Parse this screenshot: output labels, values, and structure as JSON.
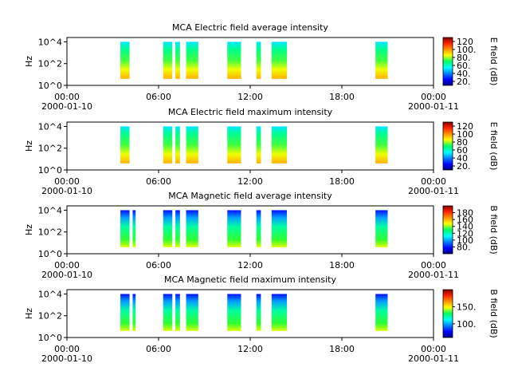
{
  "chart_data": [
    {
      "type": "spectrogram",
      "title": "MCA  Electric field average intensity",
      "ylabel": "Hz",
      "yscale": "log",
      "ylim": [
        1,
        25000
      ],
      "yticks": [
        {
          "value": 1,
          "label": "10^0"
        },
        {
          "value": 100,
          "label": "10^2"
        },
        {
          "value": 10000,
          "label": "10^4"
        }
      ],
      "xlim": [
        0,
        24
      ],
      "xticks": [
        {
          "value": 0,
          "label": "00:00"
        },
        {
          "value": 6,
          "label": "06:00"
        },
        {
          "value": 12,
          "label": "12:00"
        },
        {
          "value": 18,
          "label": "18:00"
        },
        {
          "value": 24,
          "label": "00:00"
        }
      ],
      "xdates": [
        {
          "value": 0,
          "label": "2000-01-10"
        },
        {
          "value": 24,
          "label": "2000-01-11"
        }
      ],
      "freq_range": [
        4,
        10000
      ],
      "segments": [
        [
          3.5,
          4.1
        ],
        [
          6.3,
          6.9
        ],
        [
          7.1,
          7.4
        ],
        [
          7.8,
          8.6
        ],
        [
          10.5,
          11.4
        ],
        [
          12.4,
          12.7
        ],
        [
          13.4,
          14.4
        ],
        [
          20.2,
          21.0
        ]
      ],
      "colorbar_label": "E field (dB)",
      "clim": [
        10,
        130
      ],
      "cticks": [
        {
          "value": 20,
          "label": "20."
        },
        {
          "value": 40,
          "label": "40."
        },
        {
          "value": 60,
          "label": "60."
        },
        {
          "value": 80,
          "label": "80."
        },
        {
          "value": 100,
          "label": "100."
        },
        {
          "value": 120,
          "label": "120"
        }
      ]
    },
    {
      "type": "spectrogram",
      "title": "MCA  Electric field maximum intensity",
      "ylabel": "Hz",
      "yscale": "log",
      "ylim": [
        1,
        25000
      ],
      "yticks": [
        {
          "value": 1,
          "label": "10^0"
        },
        {
          "value": 100,
          "label": "10^2"
        },
        {
          "value": 10000,
          "label": "10^4"
        }
      ],
      "xlim": [
        0,
        24
      ],
      "xticks": [
        {
          "value": 0,
          "label": "00:00"
        },
        {
          "value": 6,
          "label": "06:00"
        },
        {
          "value": 12,
          "label": "12:00"
        },
        {
          "value": 18,
          "label": "18:00"
        },
        {
          "value": 24,
          "label": "00:00"
        }
      ],
      "xdates": [
        {
          "value": 0,
          "label": "2000-01-10"
        },
        {
          "value": 24,
          "label": "2000-01-11"
        }
      ],
      "freq_range": [
        4,
        10000
      ],
      "segments": [
        [
          3.5,
          4.1
        ],
        [
          6.3,
          6.9
        ],
        [
          7.1,
          7.4
        ],
        [
          7.8,
          8.6
        ],
        [
          10.5,
          11.4
        ],
        [
          12.4,
          12.7
        ],
        [
          13.4,
          14.4
        ],
        [
          20.2,
          21.0
        ]
      ],
      "colorbar_label": "E field (dB)",
      "clim": [
        10,
        130
      ],
      "cticks": [
        {
          "value": 20,
          "label": "20."
        },
        40,
        60,
        80,
        100,
        120
      ]
    },
    {
      "type": "spectrogram",
      "title": "MCA  Magnetic field average intensity",
      "ylabel": "Hz",
      "yscale": "log",
      "ylim": [
        1,
        25000
      ],
      "yticks": [
        {
          "value": 1,
          "label": "10^0"
        },
        {
          "value": 100,
          "label": "10^2"
        },
        {
          "value": 10000,
          "label": "10^4"
        }
      ],
      "xlim": [
        0,
        24
      ],
      "xticks": [
        {
          "value": 0,
          "label": "00:00"
        },
        {
          "value": 6,
          "label": "06:00"
        },
        {
          "value": 12,
          "label": "12:00"
        },
        {
          "value": 18,
          "label": "18:00"
        },
        {
          "value": 24,
          "label": "00:00"
        }
      ],
      "xdates": [
        {
          "value": 0,
          "label": "2000-01-10"
        },
        {
          "value": 24,
          "label": "2000-01-11"
        }
      ],
      "freq_range": [
        4,
        10000
      ],
      "segments": [
        [
          3.5,
          4.1
        ],
        [
          4.3,
          4.5
        ],
        [
          6.3,
          6.9
        ],
        [
          7.1,
          7.4
        ],
        [
          7.8,
          8.6
        ],
        [
          10.5,
          11.4
        ],
        [
          12.4,
          12.7
        ],
        [
          13.4,
          14.4
        ],
        [
          20.2,
          21.0
        ]
      ],
      "colorbar_label": "B field (dB)",
      "clim": [
        60,
        200
      ],
      "cticks": [
        {
          "value": 80,
          "label": "80."
        },
        100,
        120,
        140,
        160,
        180
      ]
    },
    {
      "type": "spectrogram",
      "title": "MCA  Magnetic field maximum intensity",
      "ylabel": "Hz",
      "yscale": "log",
      "ylim": [
        1,
        25000
      ],
      "yticks": [
        {
          "value": 1,
          "label": "10^0"
        },
        {
          "value": 100,
          "label": "10^2"
        },
        {
          "value": 10000,
          "label": "10^4"
        }
      ],
      "xlim": [
        0,
        24
      ],
      "xticks": [
        {
          "value": 0,
          "label": "00:00"
        },
        {
          "value": 6,
          "label": "06:00"
        },
        {
          "value": 12,
          "label": "12:00"
        },
        {
          "value": 18,
          "label": "18:00"
        },
        {
          "value": 24,
          "label": "00:00"
        }
      ],
      "xdates": [
        {
          "value": 0,
          "label": "2000-01-10"
        },
        {
          "value": 24,
          "label": "2000-01-11"
        }
      ],
      "freq_range": [
        4,
        10000
      ],
      "segments": [
        [
          3.5,
          4.1
        ],
        [
          4.3,
          4.5
        ],
        [
          6.3,
          6.9
        ],
        [
          7.1,
          7.4
        ],
        [
          7.8,
          8.6
        ],
        [
          10.5,
          11.4
        ],
        [
          12.4,
          12.7
        ],
        [
          13.4,
          14.4
        ],
        [
          20.2,
          21.0
        ]
      ],
      "colorbar_label": "B field (dB)",
      "clim": [
        60,
        200
      ],
      "cticks": [
        {
          "value": 100,
          "label": "100."
        },
        {
          "value": 150,
          "label": "150."
        }
      ]
    }
  ]
}
